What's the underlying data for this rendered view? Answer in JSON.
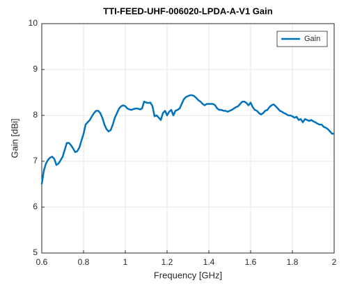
{
  "chart_data": {
    "type": "line",
    "title": "TTI-FEED-UHF-006020-LPDA-A-V1 Gain",
    "xlabel": "Frequency [GHz]",
    "ylabel": "Gain [dBi]",
    "x": [
      0.6,
      0.61,
      0.62,
      0.63,
      0.64,
      0.65,
      0.66,
      0.67,
      0.68,
      0.69,
      0.7,
      0.71,
      0.72,
      0.73,
      0.74,
      0.75,
      0.76,
      0.77,
      0.78,
      0.79,
      0.8,
      0.81,
      0.82,
      0.83,
      0.84,
      0.85,
      0.86,
      0.87,
      0.88,
      0.89,
      0.9,
      0.91,
      0.92,
      0.93,
      0.94,
      0.95,
      0.96,
      0.97,
      0.98,
      0.99,
      1.0,
      1.01,
      1.02,
      1.03,
      1.04,
      1.05,
      1.06,
      1.07,
      1.08,
      1.09,
      1.1,
      1.11,
      1.12,
      1.13,
      1.14,
      1.15,
      1.16,
      1.17,
      1.18,
      1.19,
      1.2,
      1.21,
      1.22,
      1.23,
      1.24,
      1.25,
      1.26,
      1.27,
      1.28,
      1.29,
      1.3,
      1.31,
      1.32,
      1.33,
      1.34,
      1.35,
      1.36,
      1.37,
      1.38,
      1.39,
      1.4,
      1.41,
      1.42,
      1.43,
      1.44,
      1.45,
      1.46,
      1.47,
      1.48,
      1.49,
      1.5,
      1.51,
      1.52,
      1.53,
      1.54,
      1.55,
      1.56,
      1.57,
      1.58,
      1.59,
      1.6,
      1.61,
      1.62,
      1.63,
      1.64,
      1.65,
      1.66,
      1.67,
      1.68,
      1.69,
      1.7,
      1.71,
      1.72,
      1.73,
      1.74,
      1.75,
      1.76,
      1.77,
      1.78,
      1.79,
      1.8,
      1.81,
      1.82,
      1.83,
      1.84,
      1.85,
      1.86,
      1.87,
      1.88,
      1.89,
      1.9,
      1.91,
      1.92,
      1.93,
      1.94,
      1.95,
      1.96,
      1.97,
      1.98,
      1.99,
      2.0
    ],
    "series": [
      {
        "name": "Gain",
        "color": "#0072bd",
        "values": [
          6.5,
          6.8,
          6.95,
          7.03,
          7.08,
          7.1,
          7.05,
          6.92,
          6.95,
          7.02,
          7.1,
          7.25,
          7.4,
          7.4,
          7.35,
          7.28,
          7.2,
          7.22,
          7.3,
          7.45,
          7.6,
          7.8,
          7.85,
          7.9,
          7.98,
          8.05,
          8.1,
          8.1,
          8.05,
          7.95,
          7.8,
          7.7,
          7.65,
          7.68,
          7.8,
          7.95,
          8.05,
          8.15,
          8.2,
          8.22,
          8.2,
          8.15,
          8.13,
          8.12,
          8.14,
          8.15,
          8.15,
          8.13,
          8.15,
          8.3,
          8.28,
          8.27,
          8.28,
          8.2,
          7.98,
          8.0,
          7.95,
          7.9,
          8.05,
          8.1,
          8.0,
          8.08,
          8.12,
          8.0,
          8.1,
          8.12,
          8.15,
          8.25,
          8.35,
          8.4,
          8.42,
          8.44,
          8.44,
          8.42,
          8.38,
          8.33,
          8.3,
          8.25,
          8.22,
          8.25,
          8.25,
          8.25,
          8.25,
          8.22,
          8.15,
          8.12,
          8.12,
          8.1,
          8.1,
          8.08,
          8.1,
          8.12,
          8.15,
          8.18,
          8.2,
          8.25,
          8.3,
          8.3,
          8.27,
          8.22,
          8.28,
          8.18,
          8.12,
          8.1,
          8.05,
          8.02,
          8.05,
          8.1,
          8.12,
          8.18,
          8.22,
          8.24,
          8.2,
          8.15,
          8.1,
          8.08,
          8.05,
          8.03,
          8.0,
          8.0,
          7.98,
          7.95,
          7.97,
          7.9,
          7.92,
          7.85,
          7.92,
          7.9,
          7.88,
          7.9,
          7.87,
          7.85,
          7.82,
          7.8,
          7.8,
          7.75,
          7.73,
          7.7,
          7.65,
          7.6,
          7.6
        ]
      }
    ],
    "xlim": [
      0.6,
      2
    ],
    "xticks": [
      0.6,
      0.8,
      1,
      1.2,
      1.4,
      1.6,
      1.8,
      2
    ],
    "ylim": [
      5,
      10
    ],
    "yticks": [
      5,
      6,
      7,
      8,
      9,
      10
    ],
    "grid": true,
    "legend": "northeast"
  }
}
